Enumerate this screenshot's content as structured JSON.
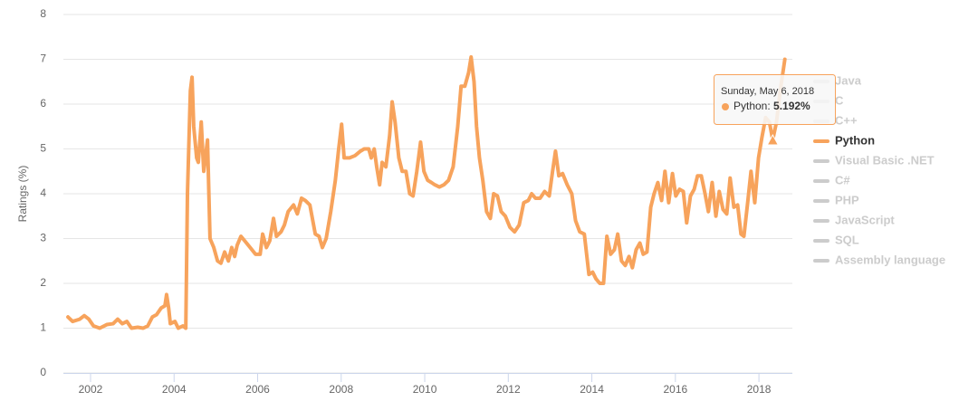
{
  "chart_data": {
    "type": "line",
    "y_label": "Ratings (%)",
    "xlim": [
      2001.35,
      2018.8
    ],
    "xticks": [
      2002,
      2004,
      2006,
      2008,
      2010,
      2012,
      2014,
      2016,
      2018
    ],
    "ylim": [
      0,
      8
    ],
    "yticks": [
      0,
      1,
      2,
      3,
      4,
      5,
      6,
      7,
      8
    ],
    "grid": true,
    "x": [
      2001.46,
      2001.57,
      2001.74,
      2001.85,
      2001.96,
      2002.07,
      2002.22,
      2002.39,
      2002.54,
      2002.65,
      2002.76,
      2002.87,
      2002.98,
      2003.13,
      2003.26,
      2003.37,
      2003.48,
      2003.58,
      2003.69,
      2003.78,
      2003.82,
      2003.87,
      2003.91,
      2004.02,
      2004.1,
      2004.21,
      2004.28,
      2004.32,
      2004.39,
      2004.43,
      2004.47,
      2004.54,
      2004.58,
      2004.65,
      2004.71,
      2004.8,
      2004.86,
      2004.95,
      2005.04,
      2005.12,
      2005.21,
      2005.3,
      2005.38,
      2005.45,
      2005.51,
      2005.6,
      2005.69,
      2005.82,
      2005.95,
      2006.06,
      2006.12,
      2006.21,
      2006.29,
      2006.38,
      2006.45,
      2006.56,
      2006.64,
      2006.73,
      2006.86,
      2006.95,
      2007.05,
      2007.14,
      2007.25,
      2007.38,
      2007.47,
      2007.55,
      2007.64,
      2007.75,
      2007.86,
      2007.94,
      2008.01,
      2008.07,
      2008.2,
      2008.33,
      2008.46,
      2008.55,
      2008.66,
      2008.72,
      2008.79,
      2008.85,
      2008.92,
      2008.98,
      2009.07,
      2009.16,
      2009.22,
      2009.29,
      2009.38,
      2009.46,
      2009.55,
      2009.64,
      2009.72,
      2009.81,
      2009.9,
      2009.98,
      2010.07,
      2010.16,
      2010.24,
      2010.35,
      2010.46,
      2010.57,
      2010.68,
      2010.79,
      2010.87,
      2010.96,
      2011.05,
      2011.11,
      2011.18,
      2011.24,
      2011.31,
      2011.39,
      2011.48,
      2011.57,
      2011.65,
      2011.74,
      2011.83,
      2011.93,
      2012.04,
      2012.15,
      2012.26,
      2012.37,
      2012.48,
      2012.56,
      2012.65,
      2012.76,
      2012.87,
      2012.98,
      2013.06,
      2013.13,
      2013.21,
      2013.3,
      2013.41,
      2013.52,
      2013.61,
      2013.71,
      2013.82,
      2013.93,
      2014.02,
      2014.1,
      2014.19,
      2014.28,
      2014.36,
      2014.45,
      2014.54,
      2014.62,
      2014.71,
      2014.8,
      2014.89,
      2014.97,
      2015.06,
      2015.15,
      2015.23,
      2015.32,
      2015.41,
      2015.49,
      2015.58,
      2015.67,
      2015.75,
      2015.84,
      2015.93,
      2016.01,
      2016.1,
      2016.19,
      2016.27,
      2016.36,
      2016.45,
      2016.53,
      2016.62,
      2016.71,
      2016.79,
      2016.88,
      2016.97,
      2017.05,
      2017.14,
      2017.23,
      2017.31,
      2017.4,
      2017.49,
      2017.57,
      2017.64,
      2017.73,
      2017.81,
      2017.9,
      2017.99,
      2018.07,
      2018.16,
      2018.25,
      2018.33,
      2018.42,
      2018.51,
      2018.62
    ],
    "series": [
      {
        "name": "Java",
        "visible": false,
        "color": "#cccccc"
      },
      {
        "name": "C",
        "visible": false,
        "color": "#cccccc"
      },
      {
        "name": "C++",
        "visible": false,
        "color": "#cccccc"
      },
      {
        "name": "Python",
        "visible": true,
        "color": "#f7a35c",
        "values": [
          1.25,
          1.15,
          1.2,
          1.28,
          1.2,
          1.05,
          1.0,
          1.08,
          1.1,
          1.2,
          1.1,
          1.15,
          1.0,
          1.02,
          1.0,
          1.05,
          1.25,
          1.3,
          1.45,
          1.5,
          1.75,
          1.45,
          1.1,
          1.15,
          1.0,
          1.05,
          1.0,
          4.0,
          6.3,
          6.6,
          5.5,
          4.8,
          4.7,
          5.6,
          4.5,
          5.2,
          3.0,
          2.8,
          2.5,
          2.45,
          2.7,
          2.5,
          2.8,
          2.6,
          2.85,
          3.05,
          2.95,
          2.8,
          2.65,
          2.65,
          3.1,
          2.8,
          2.95,
          3.45,
          3.05,
          3.15,
          3.3,
          3.6,
          3.75,
          3.55,
          3.9,
          3.85,
          3.75,
          3.1,
          3.05,
          2.8,
          3.0,
          3.6,
          4.3,
          5.0,
          5.55,
          4.8,
          4.8,
          4.85,
          4.95,
          5.0,
          5.0,
          4.8,
          5.0,
          4.6,
          4.2,
          4.7,
          4.6,
          5.3,
          6.05,
          5.6,
          4.8,
          4.5,
          4.5,
          4.0,
          3.95,
          4.5,
          5.15,
          4.5,
          4.3,
          4.25,
          4.2,
          4.15,
          4.2,
          4.3,
          4.6,
          5.5,
          6.4,
          6.4,
          6.7,
          7.05,
          6.5,
          5.5,
          4.8,
          4.3,
          3.6,
          3.45,
          4.0,
          3.95,
          3.6,
          3.5,
          3.25,
          3.15,
          3.3,
          3.8,
          3.85,
          4.0,
          3.9,
          3.9,
          4.05,
          3.95,
          4.5,
          4.95,
          4.4,
          4.45,
          4.2,
          4.0,
          3.4,
          3.15,
          3.1,
          2.2,
          2.25,
          2.1,
          2.0,
          2.0,
          3.05,
          2.65,
          2.75,
          3.1,
          2.5,
          2.4,
          2.6,
          2.35,
          2.75,
          2.9,
          2.65,
          2.7,
          3.7,
          4.0,
          4.25,
          3.85,
          4.5,
          3.8,
          4.45,
          3.95,
          4.1,
          4.05,
          3.35,
          3.95,
          4.1,
          4.4,
          4.4,
          4.0,
          3.6,
          4.25,
          3.5,
          4.05,
          3.65,
          3.55,
          4.35,
          3.7,
          3.75,
          3.1,
          3.05,
          3.8,
          4.5,
          3.8,
          4.8,
          5.25,
          5.7,
          5.6,
          5.2,
          5.6,
          6.3,
          7.0
        ]
      },
      {
        "name": "Visual Basic .NET",
        "visible": false,
        "color": "#cccccc"
      },
      {
        "name": "C#",
        "visible": false,
        "color": "#cccccc"
      },
      {
        "name": "PHP",
        "visible": false,
        "color": "#cccccc"
      },
      {
        "name": "JavaScript",
        "visible": false,
        "color": "#cccccc"
      },
      {
        "name": "SQL",
        "visible": false,
        "color": "#cccccc"
      },
      {
        "name": "Assembly language",
        "visible": false,
        "color": "#cccccc"
      }
    ],
    "tooltip": {
      "date": "Sunday, May 6, 2018",
      "series": "Python",
      "x": 2018.33,
      "value": 5.192,
      "value_label": "5.192%"
    }
  }
}
